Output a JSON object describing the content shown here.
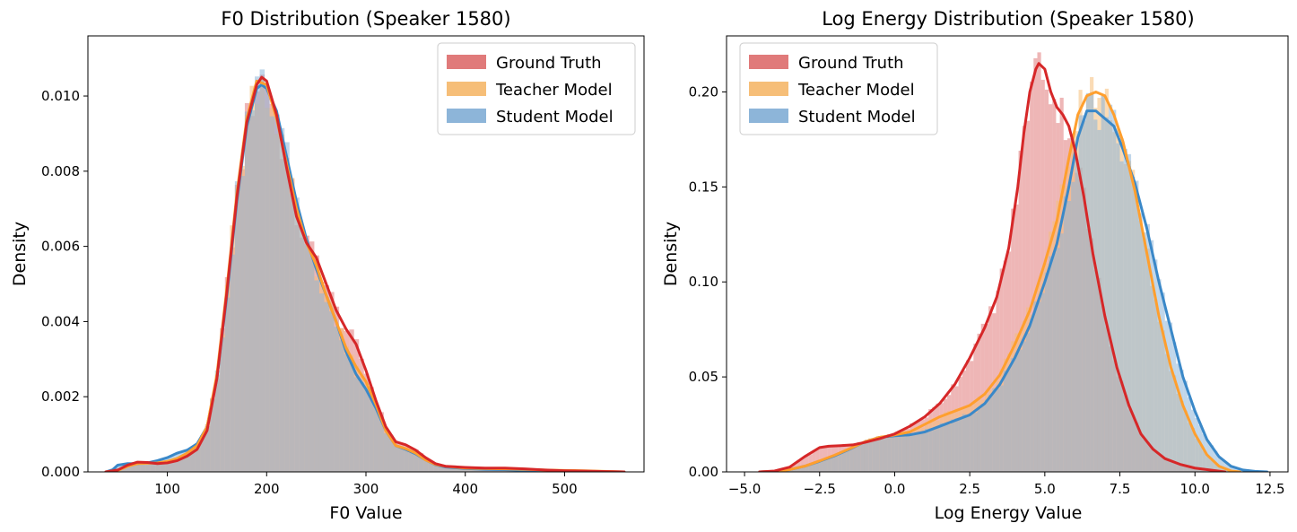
{
  "chart_data": [
    {
      "type": "histogram",
      "title": "F0 Distribution (Speaker 1580)",
      "xlabel": "F0 Value",
      "ylabel": "Density",
      "xlim": [
        20,
        580
      ],
      "ylim": [
        0,
        0.0116
      ],
      "xticks": [
        100,
        200,
        300,
        400,
        500
      ],
      "yticks": [
        0.0,
        0.002,
        0.004,
        0.006,
        0.008,
        0.01
      ],
      "ytick_format": 3,
      "legend_position": "upper right",
      "grid": false,
      "bin_width": 5,
      "series": [
        {
          "name": "Ground Truth",
          "color": "#d62728",
          "fill_color": "#e07a7a",
          "kde": [
            [
              38,
              0.0
            ],
            [
              50,
              5e-05
            ],
            [
              60,
              0.00018
            ],
            [
              70,
              0.00026
            ],
            [
              80,
              0.00025
            ],
            [
              90,
              0.00022
            ],
            [
              100,
              0.00024
            ],
            [
              110,
              0.0003
            ],
            [
              120,
              0.00042
            ],
            [
              130,
              0.0006
            ],
            [
              140,
              0.0011
            ],
            [
              150,
              0.0025
            ],
            [
              160,
              0.0048
            ],
            [
              170,
              0.0073
            ],
            [
              180,
              0.0093
            ],
            [
              190,
              0.0103
            ],
            [
              195,
              0.0105
            ],
            [
              200,
              0.0104
            ],
            [
              210,
              0.0095
            ],
            [
              220,
              0.0081
            ],
            [
              230,
              0.0068
            ],
            [
              240,
              0.0061
            ],
            [
              250,
              0.0057
            ],
            [
              260,
              0.005
            ],
            [
              270,
              0.0043
            ],
            [
              280,
              0.0038
            ],
            [
              290,
              0.0034
            ],
            [
              300,
              0.0027
            ],
            [
              310,
              0.0019
            ],
            [
              320,
              0.0012
            ],
            [
              330,
              0.0008
            ],
            [
              340,
              0.00072
            ],
            [
              350,
              0.00058
            ],
            [
              360,
              0.00038
            ],
            [
              370,
              0.00022
            ],
            [
              380,
              0.00015
            ],
            [
              400,
              0.00012
            ],
            [
              420,
              0.0001
            ],
            [
              440,
              0.0001
            ],
            [
              460,
              8e-05
            ],
            [
              480,
              5e-05
            ],
            [
              500,
              3e-05
            ],
            [
              520,
              2e-05
            ],
            [
              560,
              0.0
            ]
          ]
        },
        {
          "name": "Teacher Model",
          "color": "#ff9f2e",
          "fill_color": "#f6be78",
          "kde": [
            [
              38,
              0.0
            ],
            [
              50,
              4e-05
            ],
            [
              60,
              0.00015
            ],
            [
              70,
              0.00022
            ],
            [
              80,
              0.00023
            ],
            [
              90,
              0.00024
            ],
            [
              100,
              0.00028
            ],
            [
              110,
              0.00036
            ],
            [
              120,
              0.0005
            ],
            [
              130,
              0.0007
            ],
            [
              140,
              0.0012
            ],
            [
              150,
              0.0026
            ],
            [
              160,
              0.0049
            ],
            [
              170,
              0.0074
            ],
            [
              180,
              0.0094
            ],
            [
              190,
              0.0104
            ],
            [
              200,
              0.0103
            ],
            [
              210,
              0.0094
            ],
            [
              220,
              0.0082
            ],
            [
              230,
              0.007
            ],
            [
              240,
              0.0061
            ],
            [
              250,
              0.0055
            ],
            [
              260,
              0.0047
            ],
            [
              270,
              0.004
            ],
            [
              280,
              0.0033
            ],
            [
              290,
              0.0028
            ],
            [
              300,
              0.0024
            ],
            [
              310,
              0.0018
            ],
            [
              320,
              0.0011
            ],
            [
              330,
              0.0007
            ],
            [
              340,
              0.00062
            ],
            [
              350,
              0.0005
            ],
            [
              360,
              0.00032
            ],
            [
              370,
              0.0002
            ],
            [
              380,
              0.00015
            ],
            [
              400,
              0.0001
            ],
            [
              420,
              9e-05
            ],
            [
              440,
              8e-05
            ],
            [
              460,
              7e-05
            ],
            [
              480,
              5e-05
            ],
            [
              500,
              4e-05
            ],
            [
              520,
              3e-05
            ],
            [
              560,
              0.0
            ]
          ]
        },
        {
          "name": "Student Model",
          "color": "#3a88c8",
          "fill_color": "#8db5d9",
          "kde": [
            [
              38,
              0.0
            ],
            [
              45,
              6e-05
            ],
            [
              50,
              0.00018
            ],
            [
              60,
              0.00022
            ],
            [
              70,
              0.00022
            ],
            [
              80,
              0.00024
            ],
            [
              90,
              0.0003
            ],
            [
              100,
              0.00038
            ],
            [
              110,
              0.0005
            ],
            [
              120,
              0.00058
            ],
            [
              130,
              0.00075
            ],
            [
              140,
              0.0012
            ],
            [
              150,
              0.0025
            ],
            [
              160,
              0.0047
            ],
            [
              170,
              0.0072
            ],
            [
              180,
              0.0092
            ],
            [
              190,
              0.0102
            ],
            [
              195,
              0.0103
            ],
            [
              200,
              0.0102
            ],
            [
              210,
              0.0096
            ],
            [
              220,
              0.0084
            ],
            [
              230,
              0.0072
            ],
            [
              240,
              0.0062
            ],
            [
              250,
              0.0054
            ],
            [
              260,
              0.0047
            ],
            [
              270,
              0.004
            ],
            [
              280,
              0.0032
            ],
            [
              290,
              0.0026
            ],
            [
              300,
              0.0022
            ],
            [
              310,
              0.0017
            ],
            [
              320,
              0.0011
            ],
            [
              330,
              0.0007
            ],
            [
              340,
              0.0006
            ],
            [
              350,
              0.00048
            ],
            [
              360,
              0.00032
            ],
            [
              370,
              0.00019
            ],
            [
              380,
              0.00013
            ],
            [
              400,
              9e-05
            ],
            [
              420,
              7e-05
            ],
            [
              440,
              6e-05
            ],
            [
              460,
              4e-05
            ],
            [
              480,
              3e-05
            ],
            [
              520,
              1e-05
            ],
            [
              560,
              0.0
            ]
          ]
        }
      ]
    },
    {
      "type": "histogram",
      "title": "Log Energy Distribution (Speaker 1580)",
      "xlabel": "Log Energy Value",
      "ylabel": "Density",
      "xlim": [
        -5.6,
        13.1
      ],
      "ylim": [
        0,
        0.2295
      ],
      "xticks": [
        -5.0,
        -2.5,
        0.0,
        2.5,
        5.0,
        7.5,
        10.0,
        12.5
      ],
      "yticks": [
        0.0,
        0.05,
        0.1,
        0.15,
        0.2
      ],
      "ytick_format": 2,
      "legend_position": "upper left",
      "grid": false,
      "bin_width": 0.125,
      "series": [
        {
          "name": "Ground Truth",
          "color": "#d62728",
          "fill_color": "#e07a7a",
          "kde": [
            [
              -4.5,
              0.0
            ],
            [
              -4.0,
              0.0005
            ],
            [
              -3.5,
              0.0025
            ],
            [
              -3.0,
              0.008
            ],
            [
              -2.5,
              0.0128
            ],
            [
              -2.2,
              0.0135
            ],
            [
              -1.8,
              0.0138
            ],
            [
              -1.4,
              0.0142
            ],
            [
              -1.0,
              0.0155
            ],
            [
              -0.5,
              0.0175
            ],
            [
              0.0,
              0.02
            ],
            [
              0.5,
              0.024
            ],
            [
              1.0,
              0.029
            ],
            [
              1.5,
              0.036
            ],
            [
              2.0,
              0.046
            ],
            [
              2.5,
              0.06
            ],
            [
              3.0,
              0.076
            ],
            [
              3.4,
              0.092
            ],
            [
              3.8,
              0.118
            ],
            [
              4.1,
              0.15
            ],
            [
              4.3,
              0.178
            ],
            [
              4.5,
              0.2
            ],
            [
              4.7,
              0.212
            ],
            [
              4.8,
              0.215
            ],
            [
              5.0,
              0.212
            ],
            [
              5.2,
              0.2
            ],
            [
              5.4,
              0.192
            ],
            [
              5.6,
              0.188
            ],
            [
              5.8,
              0.182
            ],
            [
              6.0,
              0.17
            ],
            [
              6.3,
              0.145
            ],
            [
              6.6,
              0.115
            ],
            [
              7.0,
              0.082
            ],
            [
              7.4,
              0.055
            ],
            [
              7.8,
              0.035
            ],
            [
              8.2,
              0.02
            ],
            [
              8.6,
              0.012
            ],
            [
              9.0,
              0.007
            ],
            [
              9.5,
              0.004
            ],
            [
              10.0,
              0.002
            ],
            [
              10.5,
              0.001
            ],
            [
              11.0,
              0.0
            ]
          ]
        },
        {
          "name": "Teacher Model",
          "color": "#ff9f2e",
          "fill_color": "#f6be78",
          "kde": [
            [
              -4.5,
              0.0
            ],
            [
              -4.0,
              0.0003
            ],
            [
              -3.5,
              0.0012
            ],
            [
              -3.0,
              0.003
            ],
            [
              -2.5,
              0.0058
            ],
            [
              -2.0,
              0.0088
            ],
            [
              -1.5,
              0.0122
            ],
            [
              -1.0,
              0.0158
            ],
            [
              -0.5,
              0.0182
            ],
            [
              0.0,
              0.0195
            ],
            [
              0.5,
              0.021
            ],
            [
              1.0,
              0.025
            ],
            [
              1.5,
              0.029
            ],
            [
              2.0,
              0.032
            ],
            [
              2.5,
              0.035
            ],
            [
              3.0,
              0.041
            ],
            [
              3.5,
              0.051
            ],
            [
              4.0,
              0.067
            ],
            [
              4.5,
              0.085
            ],
            [
              5.0,
              0.11
            ],
            [
              5.4,
              0.132
            ],
            [
              5.8,
              0.165
            ],
            [
              6.1,
              0.188
            ],
            [
              6.4,
              0.198
            ],
            [
              6.7,
              0.2
            ],
            [
              7.0,
              0.198
            ],
            [
              7.3,
              0.188
            ],
            [
              7.6,
              0.174
            ],
            [
              8.0,
              0.148
            ],
            [
              8.4,
              0.115
            ],
            [
              8.8,
              0.082
            ],
            [
              9.2,
              0.055
            ],
            [
              9.6,
              0.035
            ],
            [
              10.0,
              0.02
            ],
            [
              10.4,
              0.009
            ],
            [
              10.8,
              0.003
            ],
            [
              11.2,
              0.0005
            ],
            [
              11.5,
              0.0
            ]
          ]
        },
        {
          "name": "Student Model",
          "color": "#3a88c8",
          "fill_color": "#8db5d9",
          "kde": [
            [
              -4.5,
              0.0
            ],
            [
              -4.0,
              0.0003
            ],
            [
              -3.5,
              0.0012
            ],
            [
              -3.0,
              0.003
            ],
            [
              -2.5,
              0.0056
            ],
            [
              -2.0,
              0.0085
            ],
            [
              -1.5,
              0.012
            ],
            [
              -1.0,
              0.0158
            ],
            [
              -0.5,
              0.0182
            ],
            [
              0.0,
              0.019
            ],
            [
              0.5,
              0.0195
            ],
            [
              1.0,
              0.021
            ],
            [
              1.5,
              0.024
            ],
            [
              2.0,
              0.027
            ],
            [
              2.5,
              0.03
            ],
            [
              3.0,
              0.036
            ],
            [
              3.5,
              0.046
            ],
            [
              4.0,
              0.06
            ],
            [
              4.5,
              0.077
            ],
            [
              5.0,
              0.1
            ],
            [
              5.4,
              0.12
            ],
            [
              5.8,
              0.15
            ],
            [
              6.1,
              0.176
            ],
            [
              6.4,
              0.19
            ],
            [
              6.7,
              0.19
            ],
            [
              7.0,
              0.186
            ],
            [
              7.3,
              0.182
            ],
            [
              7.6,
              0.17
            ],
            [
              8.0,
              0.152
            ],
            [
              8.4,
              0.128
            ],
            [
              8.8,
              0.1
            ],
            [
              9.2,
              0.075
            ],
            [
              9.6,
              0.05
            ],
            [
              10.0,
              0.032
            ],
            [
              10.4,
              0.017
            ],
            [
              10.8,
              0.008
            ],
            [
              11.2,
              0.003
            ],
            [
              11.6,
              0.001
            ],
            [
              12.0,
              0.0003
            ],
            [
              12.4,
              0.0
            ]
          ]
        }
      ]
    }
  ]
}
